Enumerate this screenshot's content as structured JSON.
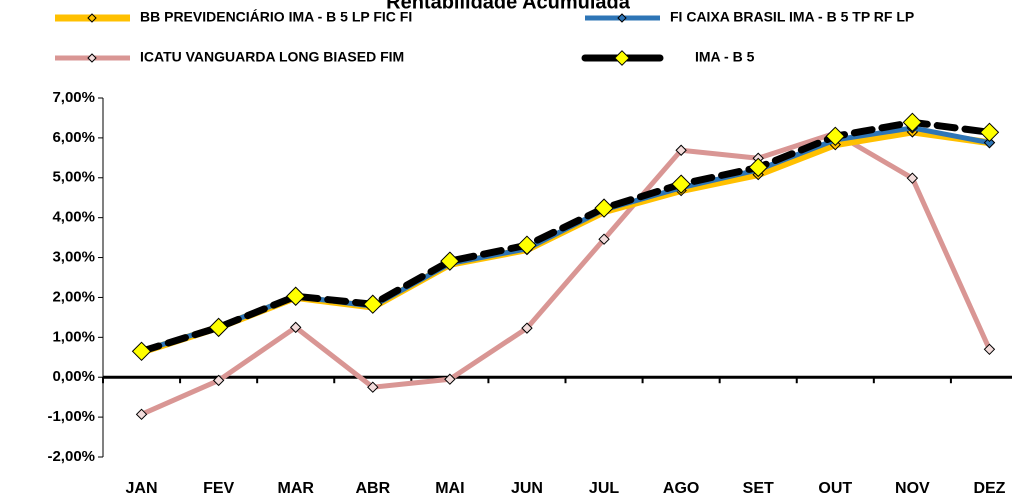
{
  "chart_data": {
    "type": "line",
    "title": "Rentabilidade Acumulada",
    "categories": [
      "JAN",
      "FEV",
      "MAR",
      "ABR",
      "MAI",
      "JUN",
      "JUL",
      "AGO",
      "SET",
      "OUT",
      "NOV",
      "DEZ"
    ],
    "series": [
      {
        "name": "ICATU VANGUARDA LONG BIASED FIM",
        "color": "#d99694",
        "values": [
          -0.93,
          -0.08,
          1.25,
          -0.25,
          -0.05,
          1.23,
          3.46,
          5.69,
          5.49,
          6.12,
          4.99,
          0.7
        ]
      },
      {
        "name": "BB PREVIDENCIÁRIO IMA - B 5 LP FIC FI",
        "color": "#ffc000",
        "values": [
          0.63,
          1.25,
          2.0,
          1.76,
          2.83,
          3.2,
          4.15,
          4.68,
          5.08,
          5.83,
          6.15,
          5.88
        ]
      },
      {
        "name": "FI CAIXA BRASIL IMA - B 5 TP RF LP",
        "color": "#2e75b6",
        "values": [
          0.65,
          1.27,
          2.03,
          1.78,
          2.85,
          3.22,
          4.2,
          4.75,
          5.2,
          5.95,
          6.25,
          5.88
        ]
      },
      {
        "name": "IMA - B 5",
        "color": "#000000",
        "values": [
          0.65,
          1.25,
          2.03,
          1.83,
          2.91,
          3.31,
          4.24,
          4.84,
          5.26,
          6.04,
          6.39,
          6.14
        ]
      }
    ],
    "ylim": [
      -2,
      7
    ],
    "yticks": [
      {
        "value": -2,
        "label": "-2,00%"
      },
      {
        "value": -1,
        "label": "-1,00%"
      },
      {
        "value": 0,
        "label": "0,00%"
      },
      {
        "value": 1,
        "label": "1,00%"
      },
      {
        "value": 2,
        "label": "2,00%"
      },
      {
        "value": 3,
        "label": "3,00%"
      },
      {
        "value": 4,
        "label": "4,00%"
      },
      {
        "value": 5,
        "label": "5,00%"
      },
      {
        "value": 6,
        "label": "6,00%"
      },
      {
        "value": 7,
        "label": "7,00%"
      }
    ],
    "grid": false
  }
}
